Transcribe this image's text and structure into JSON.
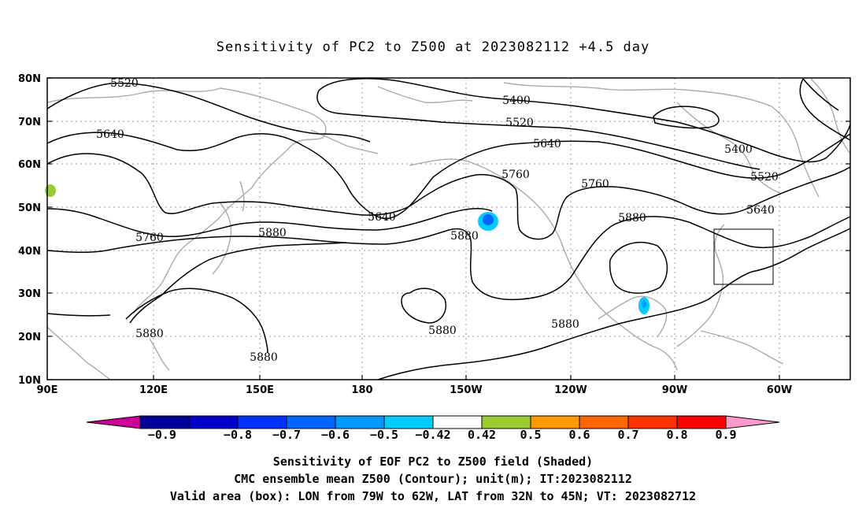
{
  "title": "Sensitivity of PC2 to Z500 at 2023082112 +4.5 day",
  "map": {
    "lat_ticks": [
      "80N",
      "70N",
      "60N",
      "50N",
      "40N",
      "30N",
      "20N",
      "10N"
    ],
    "lon_ticks": [
      "90E",
      "120E",
      "150E",
      "180",
      "150W",
      "120W",
      "90W",
      "60W"
    ],
    "contour_labels": [
      "5520",
      "5640",
      "5760",
      "5880",
      "5400",
      "5520",
      "5640",
      "5760",
      "5640",
      "5880",
      "5760",
      "5880",
      "5880",
      "5880",
      "5880",
      "5400",
      "5520",
      "5640"
    ],
    "valid_area_box": {
      "lon_from": "79W",
      "lon_to": "62W",
      "lat_from": "32N",
      "lat_to": "45N"
    },
    "shading_colors": {
      "positive_low": "#99cc33",
      "negative_low": "#00ccff",
      "negative_mid": "#0066ff",
      "coast": "#aaaaaa"
    }
  },
  "colorbar": {
    "labels": [
      "−0.9",
      "−0.8",
      "−0.7",
      "−0.6",
      "−0.5",
      "−0.42",
      "0.42",
      "0.5",
      "0.6",
      "0.7",
      "0.8",
      "0.9"
    ],
    "colors": [
      "#cc0099",
      "#000099",
      "#0000cc",
      "#0033ff",
      "#0066ff",
      "#0099ff",
      "#00ccff",
      "#ffffff",
      "#99cc33",
      "#ff9900",
      "#ff6600",
      "#ff3300",
      "#ff0000",
      "#ff99cc"
    ]
  },
  "caption": {
    "line1": "Sensitivity of EOF PC2 to Z500 field (Shaded)",
    "line2": "CMC ensemble mean Z500 (Contour); unit(m); IT:2023082112",
    "line3": "Valid area (box): LON from 79W to 62W, LAT from 32N to 45N; VT: 2023082712"
  }
}
